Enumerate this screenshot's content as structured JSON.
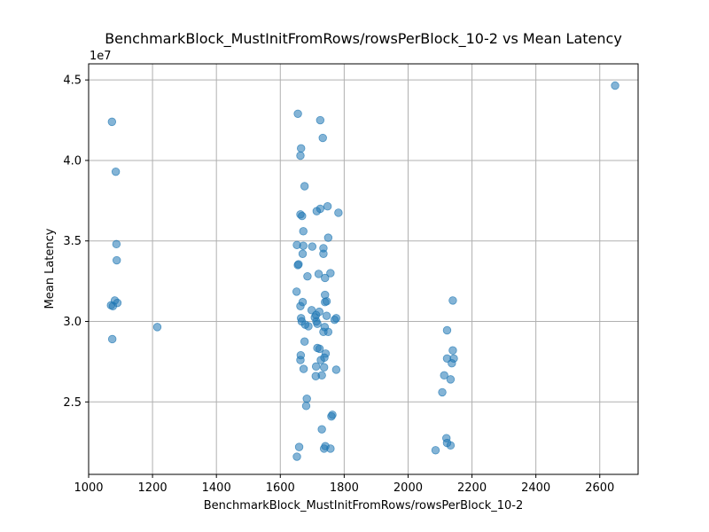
{
  "chart_data": {
    "type": "scatter",
    "title": "BenchmarkBlock_MustInitFromRows/rowsPerBlock_10-2 vs Mean Latency",
    "xlabel": "BenchmarkBlock_MustInitFromRows/rowsPerBlock_10-2",
    "ylabel": "Mean Latency",
    "y_offset_text": "1e7",
    "y_scale_multiplier": 10000000,
    "xlim": [
      1000,
      2720
    ],
    "ylim": [
      2.05,
      4.6
    ],
    "x_ticks": [
      1000,
      1200,
      1400,
      1600,
      1800,
      2000,
      2200,
      2400,
      2600
    ],
    "y_ticks": [
      2.5,
      3.0,
      3.5,
      4.0,
      4.5
    ],
    "x_tick_labels": [
      "1000",
      "1200",
      "1400",
      "1600",
      "1800",
      "2000",
      "2200",
      "2400",
      "2600"
    ],
    "y_tick_labels": [
      "2.5",
      "3.0",
      "3.5",
      "4.0",
      "4.5"
    ],
    "grid": true,
    "legend": "none",
    "marker_color": "#1f77b4",
    "marker_alpha": 0.55,
    "points": [
      [
        1073,
        4.24
      ],
      [
        1085,
        3.93
      ],
      [
        1087,
        3.48
      ],
      [
        1088,
        3.38
      ],
      [
        1082,
        3.13
      ],
      [
        1090,
        3.115
      ],
      [
        1070,
        3.1
      ],
      [
        1076,
        3.095
      ],
      [
        1074,
        2.89
      ],
      [
        1215,
        2.965
      ],
      [
        1655,
        4.29
      ],
      [
        1725,
        4.25
      ],
      [
        1733,
        4.14
      ],
      [
        1665,
        4.075
      ],
      [
        1663,
        4.03
      ],
      [
        1676,
        3.84
      ],
      [
        1748,
        3.715
      ],
      [
        1725,
        3.7
      ],
      [
        1714,
        3.685
      ],
      [
        1782,
        3.675
      ],
      [
        1663,
        3.665
      ],
      [
        1668,
        3.655
      ],
      [
        1672,
        3.56
      ],
      [
        1750,
        3.52
      ],
      [
        1652,
        3.475
      ],
      [
        1672,
        3.47
      ],
      [
        1700,
        3.465
      ],
      [
        1735,
        3.455
      ],
      [
        1670,
        3.42
      ],
      [
        1735,
        3.42
      ],
      [
        1657,
        3.355
      ],
      [
        1655,
        3.35
      ],
      [
        1720,
        3.295
      ],
      [
        1757,
        3.3
      ],
      [
        1685,
        3.28
      ],
      [
        1740,
        3.27
      ],
      [
        1651,
        3.185
      ],
      [
        1740,
        3.165
      ],
      [
        1745,
        3.125
      ],
      [
        1670,
        3.12
      ],
      [
        1740,
        3.12
      ],
      [
        1663,
        3.095
      ],
      [
        1698,
        3.07
      ],
      [
        1722,
        3.06
      ],
      [
        1712,
        3.04
      ],
      [
        1745,
        3.035
      ],
      [
        1708,
        3.025
      ],
      [
        1665,
        3.02
      ],
      [
        1775,
        3.02
      ],
      [
        1667,
        3.0
      ],
      [
        1713,
        3.0
      ],
      [
        1770,
        3.01
      ],
      [
        1678,
        2.98
      ],
      [
        1716,
        2.985
      ],
      [
        1688,
        2.97
      ],
      [
        1739,
        2.965
      ],
      [
        1735,
        2.935
      ],
      [
        1750,
        2.935
      ],
      [
        1676,
        2.875
      ],
      [
        1716,
        2.835
      ],
      [
        1723,
        2.83
      ],
      [
        1664,
        2.79
      ],
      [
        1742,
        2.8
      ],
      [
        1738,
        2.775
      ],
      [
        1663,
        2.76
      ],
      [
        1727,
        2.76
      ],
      [
        1712,
        2.72
      ],
      [
        1737,
        2.715
      ],
      [
        1673,
        2.705
      ],
      [
        1775,
        2.7
      ],
      [
        1730,
        2.665
      ],
      [
        1711,
        2.66
      ],
      [
        1683,
        2.52
      ],
      [
        1681,
        2.475
      ],
      [
        1763,
        2.42
      ],
      [
        1760,
        2.41
      ],
      [
        1730,
        2.33
      ],
      [
        1659,
        2.22
      ],
      [
        1741,
        2.225
      ],
      [
        1737,
        2.21
      ],
      [
        1757,
        2.21
      ],
      [
        1652,
        2.16
      ],
      [
        2140,
        3.13
      ],
      [
        2122,
        2.945
      ],
      [
        2140,
        2.82
      ],
      [
        2122,
        2.77
      ],
      [
        2143,
        2.77
      ],
      [
        2137,
        2.74
      ],
      [
        2113,
        2.665
      ],
      [
        2133,
        2.64
      ],
      [
        2107,
        2.56
      ],
      [
        2120,
        2.275
      ],
      [
        2122,
        2.245
      ],
      [
        2133,
        2.23
      ],
      [
        2086,
        2.2
      ],
      [
        2648,
        4.465
      ]
    ]
  }
}
